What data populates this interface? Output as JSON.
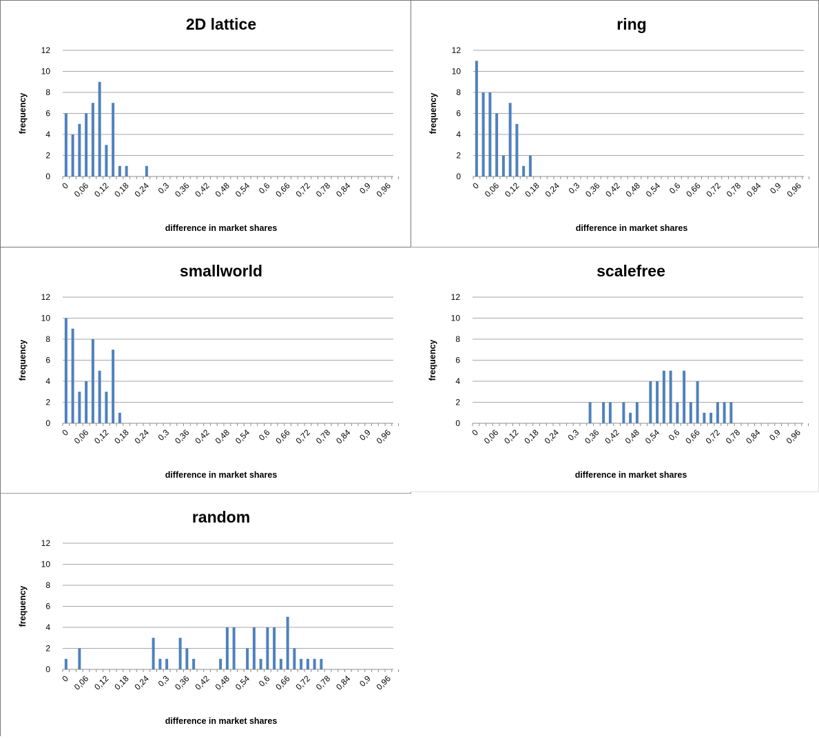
{
  "chart_data": [
    {
      "type": "bar",
      "title": "2D lattice",
      "xlabel": "difference in market shares",
      "ylabel": "frequency",
      "ylim": [
        0,
        12
      ],
      "yticks": [
        "0",
        "2",
        "4",
        "6",
        "8",
        "10",
        "12"
      ],
      "xticks": [
        "0",
        "0,06",
        "0,12",
        "0,18",
        "0,24",
        "0,3",
        "0,36",
        "0,42",
        "0,48",
        "0,54",
        "0,6",
        "0,66",
        "0,72",
        "0,78",
        "0,84",
        "0,9",
        "0,96"
      ],
      "x": [
        0,
        0.02,
        0.04,
        0.06,
        0.08,
        0.1,
        0.12,
        0.14,
        0.16,
        0.18,
        0.2,
        0.22,
        0.24,
        0.26,
        0.28,
        0.3,
        0.32,
        0.34,
        0.36,
        0.38,
        0.4,
        0.42,
        0.44,
        0.46,
        0.48,
        0.5,
        0.52,
        0.54,
        0.56,
        0.58,
        0.6,
        0.62,
        0.64,
        0.66,
        0.68,
        0.7,
        0.72,
        0.74,
        0.76,
        0.78,
        0.8,
        0.82,
        0.84,
        0.86,
        0.88,
        0.9,
        0.92,
        0.94,
        0.96,
        0.98
      ],
      "values": [
        6,
        4,
        5,
        6,
        7,
        9,
        3,
        7,
        1,
        1,
        0,
        0,
        1,
        0,
        0,
        0,
        0,
        0,
        0,
        0,
        0,
        0,
        0,
        0,
        0,
        0,
        0,
        0,
        0,
        0,
        0,
        0,
        0,
        0,
        0,
        0,
        0,
        0,
        0,
        0,
        0,
        0,
        0,
        0,
        0,
        0,
        0,
        0,
        0,
        0
      ],
      "grid": true,
      "bar_color": "#4f81bd"
    },
    {
      "type": "bar",
      "title": "ring",
      "xlabel": "difference in market shares",
      "ylabel": "frequency",
      "ylim": [
        0,
        12
      ],
      "yticks": [
        "0",
        "2",
        "4",
        "6",
        "8",
        "10",
        "12"
      ],
      "xticks": [
        "0",
        "0,06",
        "0,12",
        "0,18",
        "0,24",
        "0,3",
        "0,36",
        "0,42",
        "0,48",
        "0,54",
        "0,6",
        "0,66",
        "0,72",
        "0,78",
        "0,84",
        "0,9",
        "0,96"
      ],
      "x": [
        0,
        0.02,
        0.04,
        0.06,
        0.08,
        0.1,
        0.12,
        0.14,
        0.16,
        0.18,
        0.2,
        0.22,
        0.24,
        0.26,
        0.28,
        0.3,
        0.32,
        0.34,
        0.36,
        0.38,
        0.4,
        0.42,
        0.44,
        0.46,
        0.48,
        0.5,
        0.52,
        0.54,
        0.56,
        0.58,
        0.6,
        0.62,
        0.64,
        0.66,
        0.68,
        0.7,
        0.72,
        0.74,
        0.76,
        0.78,
        0.8,
        0.82,
        0.84,
        0.86,
        0.88,
        0.9,
        0.92,
        0.94,
        0.96,
        0.98
      ],
      "values": [
        11,
        8,
        8,
        6,
        2,
        7,
        5,
        1,
        2,
        0,
        0,
        0,
        0,
        0,
        0,
        0,
        0,
        0,
        0,
        0,
        0,
        0,
        0,
        0,
        0,
        0,
        0,
        0,
        0,
        0,
        0,
        0,
        0,
        0,
        0,
        0,
        0,
        0,
        0,
        0,
        0,
        0,
        0,
        0,
        0,
        0,
        0,
        0,
        0,
        0
      ],
      "grid": true,
      "bar_color": "#4f81bd"
    },
    {
      "type": "bar",
      "title": "smallworld",
      "xlabel": "difference in market shares",
      "ylabel": "frequency",
      "ylim": [
        0,
        12
      ],
      "yticks": [
        "0",
        "2",
        "4",
        "6",
        "8",
        "10",
        "12"
      ],
      "xticks": [
        "0",
        "0,06",
        "0,12",
        "0,18",
        "0,24",
        "0,3",
        "0,36",
        "0,42",
        "0,48",
        "0,54",
        "0,6",
        "0,66",
        "0,72",
        "0,78",
        "0,84",
        "0,9",
        "0,96"
      ],
      "x": [
        0,
        0.02,
        0.04,
        0.06,
        0.08,
        0.1,
        0.12,
        0.14,
        0.16,
        0.18,
        0.2,
        0.22,
        0.24,
        0.26,
        0.28,
        0.3,
        0.32,
        0.34,
        0.36,
        0.38,
        0.4,
        0.42,
        0.44,
        0.46,
        0.48,
        0.5,
        0.52,
        0.54,
        0.56,
        0.58,
        0.6,
        0.62,
        0.64,
        0.66,
        0.68,
        0.7,
        0.72,
        0.74,
        0.76,
        0.78,
        0.8,
        0.82,
        0.84,
        0.86,
        0.88,
        0.9,
        0.92,
        0.94,
        0.96,
        0.98
      ],
      "values": [
        10,
        9,
        3,
        4,
        8,
        5,
        3,
        7,
        1,
        0,
        0,
        0,
        0,
        0,
        0,
        0,
        0,
        0,
        0,
        0,
        0,
        0,
        0,
        0,
        0,
        0,
        0,
        0,
        0,
        0,
        0,
        0,
        0,
        0,
        0,
        0,
        0,
        0,
        0,
        0,
        0,
        0,
        0,
        0,
        0,
        0,
        0,
        0,
        0,
        0
      ],
      "grid": true,
      "bar_color": "#4f81bd"
    },
    {
      "type": "bar",
      "title": "scalefree",
      "xlabel": "difference in market shares",
      "ylabel": "frequency",
      "ylim": [
        0,
        12
      ],
      "yticks": [
        "0",
        "2",
        "4",
        "6",
        "8",
        "10",
        "12"
      ],
      "xticks": [
        "0",
        "0,06",
        "0,12",
        "0,18",
        "0,24",
        "0,3",
        "0,36",
        "0,42",
        "0,48",
        "0,54",
        "0,6",
        "0,66",
        "0,72",
        "0,78",
        "0,84",
        "0,9",
        "0,96"
      ],
      "x": [
        0,
        0.02,
        0.04,
        0.06,
        0.08,
        0.1,
        0.12,
        0.14,
        0.16,
        0.18,
        0.2,
        0.22,
        0.24,
        0.26,
        0.28,
        0.3,
        0.32,
        0.34,
        0.36,
        0.38,
        0.4,
        0.42,
        0.44,
        0.46,
        0.48,
        0.5,
        0.52,
        0.54,
        0.56,
        0.58,
        0.6,
        0.62,
        0.64,
        0.66,
        0.68,
        0.7,
        0.72,
        0.74,
        0.76,
        0.78,
        0.8,
        0.82,
        0.84,
        0.86,
        0.88,
        0.9,
        0.92,
        0.94,
        0.96,
        0.98
      ],
      "values": [
        0,
        0,
        0,
        0,
        0,
        0,
        0,
        0,
        0,
        0,
        0,
        0,
        0,
        0,
        0,
        0,
        0,
        2,
        0,
        2,
        2,
        0,
        2,
        1,
        2,
        0,
        4,
        4,
        5,
        5,
        2,
        5,
        2,
        4,
        1,
        1,
        2,
        2,
        2,
        0,
        0,
        0,
        0,
        0,
        0,
        0,
        0,
        0,
        0,
        0
      ],
      "grid": true,
      "bar_color": "#4f81bd"
    },
    {
      "type": "bar",
      "title": "random",
      "xlabel": "difference in market shares",
      "ylabel": "frequency",
      "ylim": [
        0,
        12
      ],
      "yticks": [
        "0",
        "2",
        "4",
        "6",
        "8",
        "10",
        "12"
      ],
      "xticks": [
        "0",
        "0,06",
        "0,12",
        "0,18",
        "0,24",
        "0,3",
        "0,36",
        "0,42",
        "0,48",
        "0,54",
        "0,6",
        "0,66",
        "0,72",
        "0,78",
        "0,84",
        "0,9",
        "0,96"
      ],
      "x": [
        0,
        0.02,
        0.04,
        0.06,
        0.08,
        0.1,
        0.12,
        0.14,
        0.16,
        0.18,
        0.2,
        0.22,
        0.24,
        0.26,
        0.28,
        0.3,
        0.32,
        0.34,
        0.36,
        0.38,
        0.4,
        0.42,
        0.44,
        0.46,
        0.48,
        0.5,
        0.52,
        0.54,
        0.56,
        0.58,
        0.6,
        0.62,
        0.64,
        0.66,
        0.68,
        0.7,
        0.72,
        0.74,
        0.76,
        0.78,
        0.8,
        0.82,
        0.84,
        0.86,
        0.88,
        0.9,
        0.92,
        0.94,
        0.96,
        0.98
      ],
      "values": [
        1,
        0,
        2,
        0,
        0,
        0,
        0,
        0,
        0,
        0,
        0,
        0,
        0,
        3,
        1,
        1,
        0,
        3,
        2,
        1,
        0,
        0,
        0,
        1,
        4,
        4,
        0,
        2,
        4,
        1,
        4,
        4,
        1,
        5,
        2,
        1,
        1,
        1,
        1,
        0,
        0,
        0,
        0,
        0,
        0,
        0,
        0,
        0,
        0,
        0
      ],
      "grid": true,
      "bar_color": "#4f81bd"
    }
  ]
}
